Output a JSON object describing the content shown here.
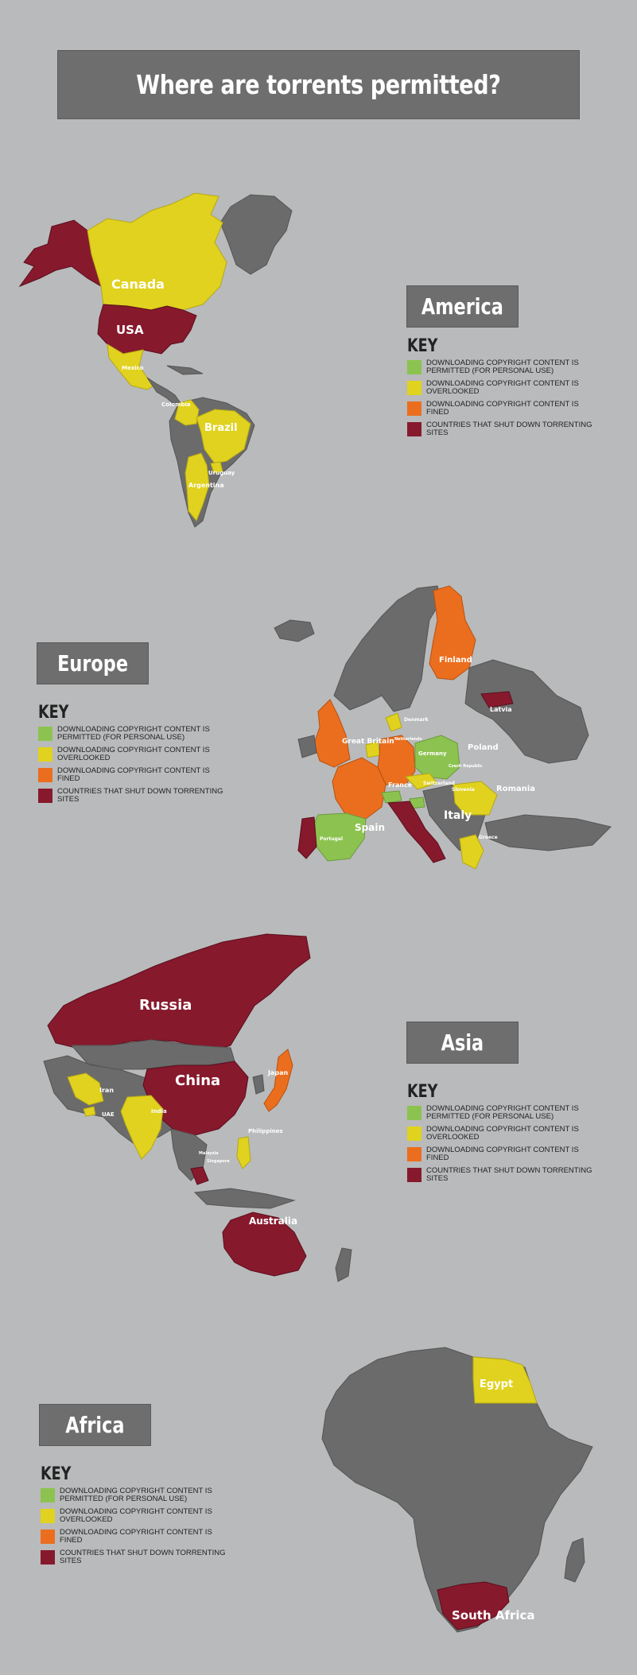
{
  "title": "Where are torrents permitted?",
  "key": {
    "title": "KEY",
    "items": [
      {
        "text": "DOWNLOADING COPYRIGHT CONTENT IS PERMITTED (FOR PERSONAL USE)",
        "color": "#8cc350"
      },
      {
        "text": "DOWNLOADING COPYRIGHT CONTENT IS OVERLOOKED",
        "color": "#e0d21e"
      },
      {
        "text": "DOWNLOADING COPYRIGHT CONTENT IS FINED",
        "color": "#eb6e1e"
      },
      {
        "text": "COUNTRIES THAT SHUT DOWN TORRENTING SITES",
        "color": "#87192d"
      }
    ]
  },
  "colors": {
    "land": "#6b6b6b",
    "background": "#b9babb",
    "title_bg": "#6e6e6e"
  },
  "regions": {
    "america": {
      "label": "America",
      "countries": [
        "Canada",
        "USA",
        "Mexico",
        "Colombia",
        "Brazil",
        "Uruguay",
        "Argentina"
      ]
    },
    "europe": {
      "label": "Europe",
      "countries": [
        "Finland",
        "Latvia",
        "Denmark",
        "Netherlands",
        "Great Britain",
        "Germany",
        "Poland",
        "Czech Republic",
        "France",
        "Switzerland",
        "Slovenia",
        "Romania",
        "Spain",
        "Italy",
        "Portugal",
        "Greece"
      ]
    },
    "asia": {
      "label": "Asia",
      "countries": [
        "Russia",
        "China",
        "Japan",
        "Iran",
        "UAE",
        "India",
        "Philippines",
        "Malaysia",
        "Singapore",
        "Australia"
      ]
    },
    "africa": {
      "label": "Africa",
      "countries": [
        "Egypt",
        "South Africa"
      ]
    }
  }
}
